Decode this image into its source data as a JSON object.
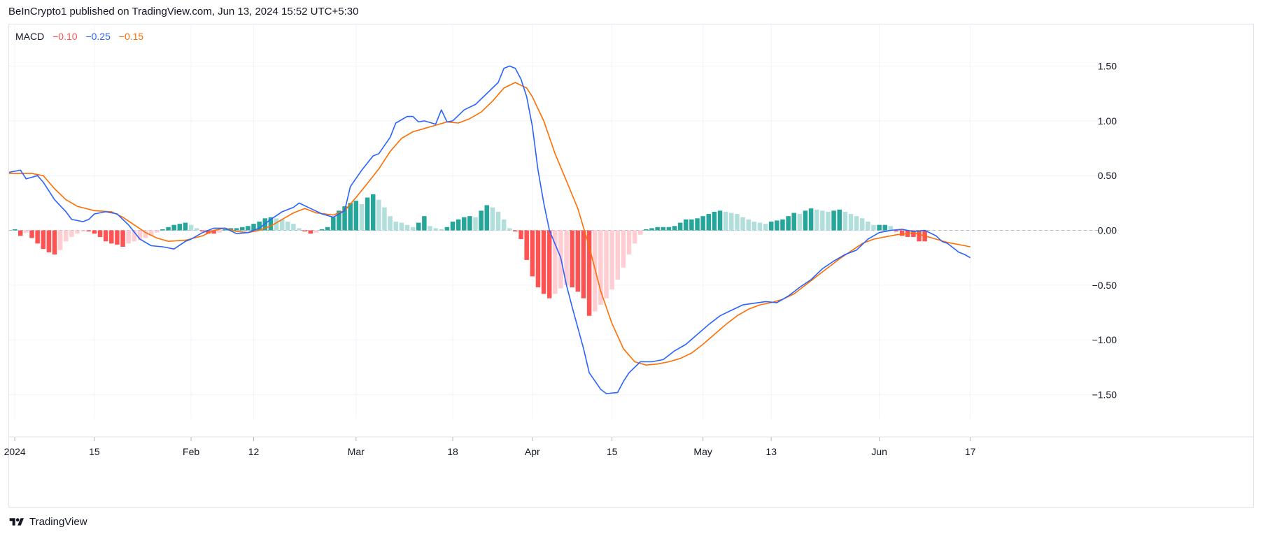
{
  "header": {
    "published_text": "BeInCrypto1 published on TradingView.com, Jun 13, 2024 15:52 UTC+5:30"
  },
  "footer": {
    "brand": "TradingView",
    "logo_icon": "tradingview-logo-icon"
  },
  "legend": {
    "name": "MACD",
    "histogram_value": "−0.10",
    "macd_value": "−0.25",
    "signal_value": "−0.15"
  },
  "colors": {
    "macd_line": "#2962ff",
    "signal_line": "#ff6d00",
    "hist_pos_strong": "#26a69a",
    "hist_pos_weak": "#b2dfdb",
    "hist_neg_strong": "#ff5252",
    "hist_neg_weak": "#ffcdd2",
    "grid": "#f0f3fa",
    "zero_line": "#b2b5be",
    "axis_text": "#131722"
  },
  "chart_data": {
    "type": "line",
    "title": "MACD",
    "ylim": [
      -1.72,
      1.88
    ],
    "grid": true,
    "y_ticks": [
      "1.50",
      "1.00",
      "0.50",
      "0.00",
      "−0.50",
      "−1.00",
      "−1.50"
    ],
    "y_tick_values": [
      1.5,
      1.0,
      0.5,
      0.0,
      -0.5,
      -1.0,
      -1.5
    ],
    "x_ticks": [
      {
        "label": "2024",
        "day": 0
      },
      {
        "label": "15",
        "day": 14
      },
      {
        "label": "Feb",
        "day": 31
      },
      {
        "label": "12",
        "day": 42
      },
      {
        "label": "Mar",
        "day": 60
      },
      {
        "label": "18",
        "day": 77
      },
      {
        "label": "Apr",
        "day": 91
      },
      {
        "label": "15",
        "day": 105
      },
      {
        "label": "May",
        "day": 121
      },
      {
        "label": "13",
        "day": 133
      },
      {
        "label": "Jun",
        "day": 152
      },
      {
        "label": "17",
        "day": 168
      }
    ],
    "x_range_days": [
      -1,
      186
    ],
    "series": [
      {
        "name": "MACD",
        "points": [
          [
            -1,
            0.53
          ],
          [
            1,
            0.55
          ],
          [
            2,
            0.47
          ],
          [
            4,
            0.5
          ],
          [
            5,
            0.44
          ],
          [
            7,
            0.28
          ],
          [
            9,
            0.17
          ],
          [
            10,
            0.1
          ],
          [
            12,
            0.08
          ],
          [
            13,
            0.1
          ],
          [
            14,
            0.15
          ],
          [
            16,
            0.17
          ],
          [
            18,
            0.15
          ],
          [
            20,
            0.05
          ],
          [
            22,
            -0.08
          ],
          [
            24,
            -0.14
          ],
          [
            26,
            -0.15
          ],
          [
            28,
            -0.17
          ],
          [
            30,
            -0.1
          ],
          [
            31,
            -0.08
          ],
          [
            33,
            -0.02
          ],
          [
            35,
            0.02
          ],
          [
            37,
            0.02
          ],
          [
            39,
            -0.03
          ],
          [
            41,
            -0.02
          ],
          [
            43,
            0.02
          ],
          [
            45,
            0.1
          ],
          [
            47,
            0.17
          ],
          [
            49,
            0.21
          ],
          [
            50,
            0.25
          ],
          [
            52,
            0.2
          ],
          [
            54,
            0.15
          ],
          [
            56,
            0.12
          ],
          [
            58,
            0.18
          ],
          [
            59,
            0.4
          ],
          [
            61,
            0.55
          ],
          [
            63,
            0.68
          ],
          [
            64,
            0.7
          ],
          [
            66,
            0.85
          ],
          [
            67,
            0.98
          ],
          [
            69,
            1.04
          ],
          [
            70,
            1.04
          ],
          [
            71,
            0.99
          ],
          [
            72,
            1.0
          ],
          [
            74,
            0.97
          ],
          [
            75,
            1.1
          ],
          [
            76,
            0.99
          ],
          [
            77,
            1.0
          ],
          [
            79,
            1.1
          ],
          [
            81,
            1.15
          ],
          [
            82,
            1.2
          ],
          [
            83,
            1.25
          ],
          [
            85,
            1.35
          ],
          [
            86,
            1.48
          ],
          [
            87,
            1.5
          ],
          [
            88,
            1.48
          ],
          [
            89,
            1.38
          ],
          [
            90,
            1.22
          ],
          [
            91,
            0.95
          ],
          [
            92,
            0.55
          ],
          [
            93,
            0.25
          ],
          [
            94,
            0.0
          ],
          [
            96,
            -0.25
          ],
          [
            97,
            -0.5
          ],
          [
            98,
            -0.7
          ],
          [
            100,
            -1.08
          ],
          [
            101,
            -1.3
          ],
          [
            103,
            -1.45
          ],
          [
            104,
            -1.49
          ],
          [
            106,
            -1.48
          ],
          [
            107,
            -1.38
          ],
          [
            108,
            -1.3
          ],
          [
            110,
            -1.2
          ],
          [
            112,
            -1.2
          ],
          [
            114,
            -1.18
          ],
          [
            116,
            -1.1
          ],
          [
            118,
            -1.04
          ],
          [
            120,
            -0.95
          ],
          [
            122,
            -0.86
          ],
          [
            124,
            -0.78
          ],
          [
            126,
            -0.73
          ],
          [
            128,
            -0.68
          ],
          [
            132,
            -0.65
          ],
          [
            134,
            -0.66
          ],
          [
            136,
            -0.6
          ],
          [
            138,
            -0.52
          ],
          [
            140,
            -0.45
          ],
          [
            142,
            -0.35
          ],
          [
            144,
            -0.28
          ],
          [
            146,
            -0.22
          ],
          [
            148,
            -0.18
          ],
          [
            150,
            -0.08
          ],
          [
            152,
            -0.02
          ],
          [
            154,
            0.0
          ],
          [
            156,
            0.01
          ],
          [
            158,
            -0.01
          ],
          [
            160,
            0.0
          ],
          [
            162,
            -0.05
          ],
          [
            163,
            -0.1
          ],
          [
            164,
            -0.12
          ],
          [
            166,
            -0.2
          ],
          [
            167,
            -0.22
          ],
          [
            168,
            -0.25
          ]
        ]
      },
      {
        "name": "Signal",
        "points": [
          [
            -1,
            0.52
          ],
          [
            3,
            0.52
          ],
          [
            5,
            0.5
          ],
          [
            7,
            0.38
          ],
          [
            9,
            0.28
          ],
          [
            11,
            0.22
          ],
          [
            14,
            0.18
          ],
          [
            17,
            0.17
          ],
          [
            19,
            0.12
          ],
          [
            21,
            0.05
          ],
          [
            23,
            -0.02
          ],
          [
            25,
            -0.07
          ],
          [
            27,
            -0.1
          ],
          [
            30,
            -0.09
          ],
          [
            33,
            -0.05
          ],
          [
            35,
            0.0
          ],
          [
            37,
            0.02
          ],
          [
            39,
            -0.01
          ],
          [
            41,
            -0.02
          ],
          [
            43,
            0.0
          ],
          [
            45,
            0.04
          ],
          [
            47,
            0.1
          ],
          [
            49,
            0.16
          ],
          [
            51,
            0.2
          ],
          [
            53,
            0.16
          ],
          [
            56,
            0.14
          ],
          [
            58,
            0.18
          ],
          [
            60,
            0.3
          ],
          [
            62,
            0.43
          ],
          [
            64,
            0.56
          ],
          [
            66,
            0.72
          ],
          [
            68,
            0.84
          ],
          [
            70,
            0.9
          ],
          [
            72,
            0.93
          ],
          [
            74,
            0.96
          ],
          [
            76,
            0.99
          ],
          [
            78,
            0.98
          ],
          [
            80,
            1.02
          ],
          [
            82,
            1.08
          ],
          [
            84,
            1.18
          ],
          [
            86,
            1.3
          ],
          [
            88,
            1.35
          ],
          [
            90,
            1.3
          ],
          [
            91,
            1.22
          ],
          [
            93,
            1.0
          ],
          [
            95,
            0.7
          ],
          [
            97,
            0.45
          ],
          [
            99,
            0.2
          ],
          [
            101,
            -0.15
          ],
          [
            103,
            -0.55
          ],
          [
            105,
            -0.85
          ],
          [
            107,
            -1.08
          ],
          [
            109,
            -1.2
          ],
          [
            111,
            -1.23
          ],
          [
            113,
            -1.22
          ],
          [
            115,
            -1.2
          ],
          [
            117,
            -1.17
          ],
          [
            119,
            -1.12
          ],
          [
            121,
            -1.04
          ],
          [
            123,
            -0.95
          ],
          [
            125,
            -0.86
          ],
          [
            127,
            -0.78
          ],
          [
            129,
            -0.72
          ],
          [
            131,
            -0.68
          ],
          [
            133,
            -0.66
          ],
          [
            135,
            -0.63
          ],
          [
            137,
            -0.58
          ],
          [
            139,
            -0.5
          ],
          [
            141,
            -0.42
          ],
          [
            143,
            -0.34
          ],
          [
            145,
            -0.26
          ],
          [
            147,
            -0.19
          ],
          [
            149,
            -0.12
          ],
          [
            151,
            -0.08
          ],
          [
            153,
            -0.06
          ],
          [
            155,
            -0.04
          ],
          [
            157,
            -0.03
          ],
          [
            158,
            -0.02
          ],
          [
            160,
            -0.05
          ],
          [
            162,
            -0.08
          ],
          [
            164,
            -0.11
          ],
          [
            166,
            -0.13
          ],
          [
            168,
            -0.15
          ]
        ]
      },
      {
        "name": "Histogram",
        "values": [
          0.01,
          -0.05,
          -0.02,
          -0.07,
          -0.12,
          -0.17,
          -0.2,
          -0.22,
          -0.18,
          -0.1,
          -0.06,
          -0.03,
          -0.01,
          -0.01,
          -0.03,
          -0.06,
          -0.1,
          -0.12,
          -0.13,
          -0.15,
          -0.12,
          -0.1,
          -0.09,
          -0.07,
          -0.05,
          -0.02,
          0.01,
          0.03,
          0.05,
          0.06,
          0.07,
          0.05,
          0.02,
          -0.01,
          -0.03,
          -0.03,
          -0.02,
          0.01,
          0.02,
          0.02,
          0.03,
          0.04,
          0.06,
          0.08,
          0.11,
          0.12,
          0.11,
          0.1,
          0.08,
          0.06,
          0.02,
          -0.01,
          -0.03,
          -0.02,
          0.01,
          0.03,
          0.12,
          0.18,
          0.22,
          0.25,
          0.27,
          0.24,
          0.3,
          0.33,
          0.28,
          0.21,
          0.13,
          0.08,
          0.07,
          0.05,
          0.03,
          0.07,
          0.13,
          0.04,
          0.02,
          0.01,
          0.03,
          0.08,
          0.1,
          0.12,
          0.13,
          0.12,
          0.18,
          0.23,
          0.21,
          0.17,
          0.1,
          0.02,
          -0.01,
          -0.08,
          -0.27,
          -0.42,
          -0.52,
          -0.58,
          -0.62,
          -0.58,
          -0.53,
          -0.5,
          -0.52,
          -0.56,
          -0.62,
          -0.78,
          -0.74,
          -0.68,
          -0.62,
          -0.54,
          -0.45,
          -0.34,
          -0.22,
          -0.12,
          -0.04,
          0.01,
          0.02,
          0.03,
          0.03,
          0.03,
          0.04,
          0.07,
          0.1,
          0.1,
          0.11,
          0.13,
          0.15,
          0.17,
          0.18,
          0.17,
          0.16,
          0.15,
          0.12,
          0.1,
          0.08,
          0.07,
          0.06,
          0.08,
          0.09,
          0.1,
          0.13,
          0.16,
          0.15,
          0.18,
          0.2,
          0.19,
          0.18,
          0.17,
          0.18,
          0.19,
          0.17,
          0.15,
          0.13,
          0.11,
          0.08,
          0.05,
          0.05,
          0.05,
          0.04,
          -0.01,
          -0.05,
          -0.06,
          -0.06,
          -0.1,
          -0.1
        ]
      }
    ]
  }
}
